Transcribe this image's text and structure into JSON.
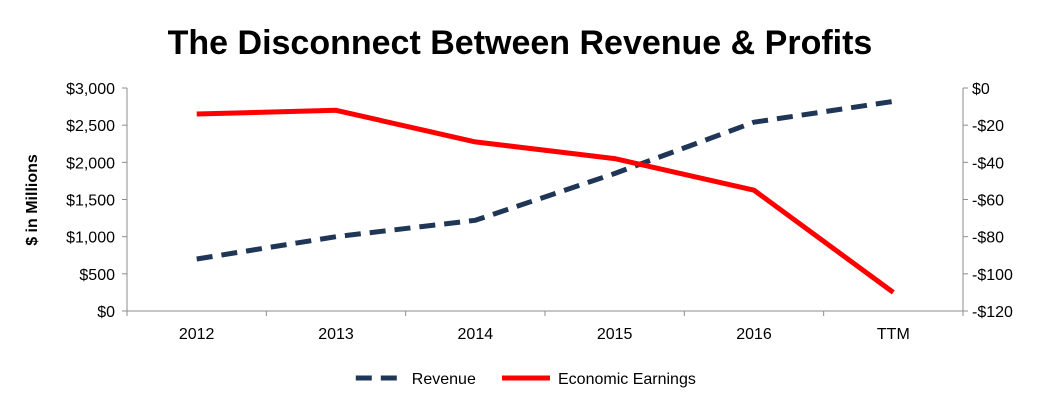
{
  "chart_data": {
    "type": "line",
    "title": "The Disconnect Between Revenue & Profits",
    "ylabel": "$ in Millions",
    "categories": [
      "2012",
      "2013",
      "2014",
      "2015",
      "2016",
      "TTM"
    ],
    "y_left": {
      "ylim": [
        0,
        3000
      ],
      "ticks": [
        0,
        500,
        1000,
        1500,
        2000,
        2500,
        3000
      ],
      "tick_labels": [
        "$0",
        "$500",
        "$1,000",
        "$1,500",
        "$2,000",
        "$2,500",
        "$3,000"
      ]
    },
    "y_right": {
      "ylim": [
        -120,
        0
      ],
      "ticks": [
        0,
        -20,
        -40,
        -60,
        -80,
        -100,
        -120
      ],
      "tick_labels": [
        "$0",
        "-$20",
        "-$40",
        "-$60",
        "-$80",
        "-$100",
        "-$120"
      ]
    },
    "series": [
      {
        "name": "Revenue",
        "axis": "left",
        "style": "dashed",
        "color": "#1f3657",
        "values": [
          700,
          1000,
          1220,
          1850,
          2540,
          2820
        ]
      },
      {
        "name": "Economic Earnings",
        "axis": "right",
        "style": "solid",
        "color": "#ff0000",
        "values": [
          -14,
          -12,
          -29,
          -38,
          -55,
          -110
        ]
      }
    ],
    "legend_position": "bottom",
    "grid": false
  }
}
